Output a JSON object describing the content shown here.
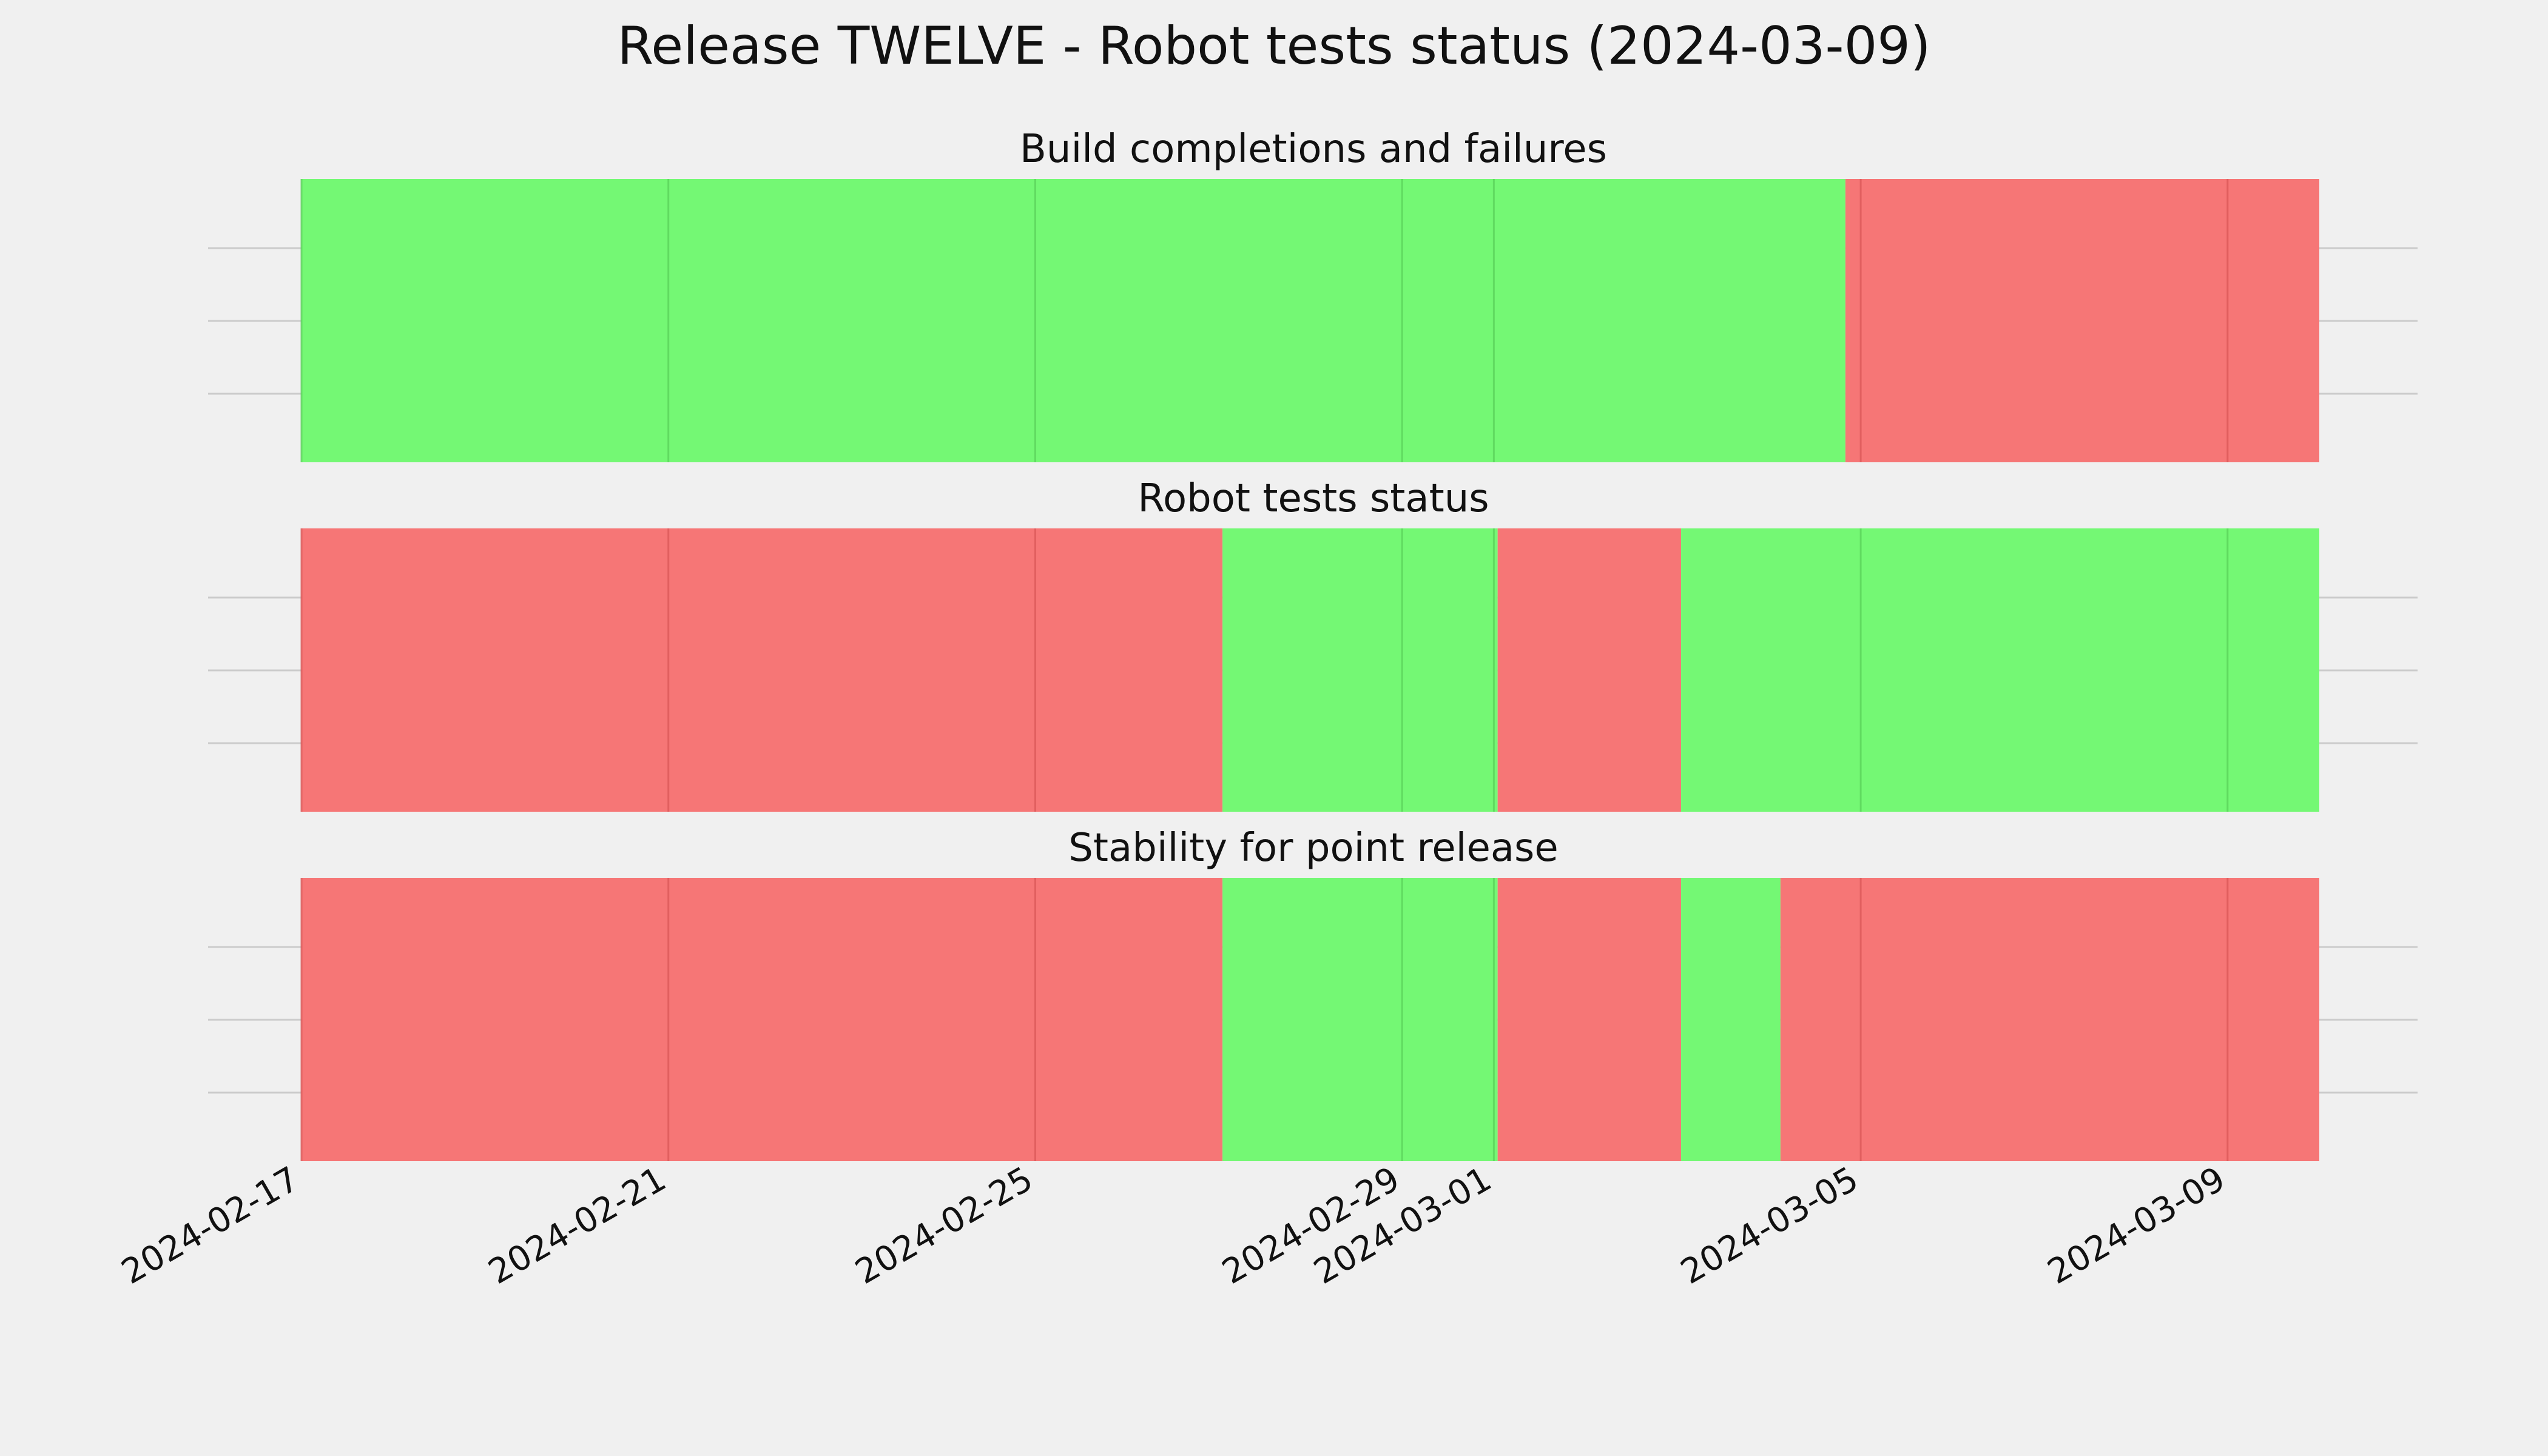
{
  "title": "Release TWELVE - Robot tests status (2024-03-09)",
  "colors": {
    "background": "#f0f0f0",
    "pass": "#74f874",
    "fail": "#f67676",
    "pass_grid": "#5cd45c",
    "fail_grid": "#dc5a5a",
    "grid": "#cbcbcb"
  },
  "chart_data": {
    "type": "timeline",
    "x_axis": {
      "type": "date",
      "range": [
        "2024-02-17",
        "2024-03-10"
      ],
      "ticks": [
        "2024-02-17",
        "2024-02-21",
        "2024-02-25",
        "2024-02-29",
        "2024-03-01",
        "2024-03-05",
        "2024-03-09"
      ]
    },
    "grid": true,
    "panels": [
      {
        "title": "Build completions and failures",
        "segments": [
          {
            "start": "2024-02-17",
            "end": "2024-03-04T20:00",
            "status": "pass"
          },
          {
            "start": "2024-03-04T20:00",
            "end": "2024-03-10",
            "status": "fail"
          }
        ]
      },
      {
        "title": "Robot tests status",
        "segments": [
          {
            "start": "2024-02-17",
            "end": "2024-02-27T01:00",
            "status": "fail"
          },
          {
            "start": "2024-02-27T01:00",
            "end": "2024-03-01T01:00",
            "status": "pass"
          },
          {
            "start": "2024-03-01T01:00",
            "end": "2024-03-03T01:00",
            "status": "fail"
          },
          {
            "start": "2024-03-03T01:00",
            "end": "2024-03-10",
            "status": "pass"
          }
        ]
      },
      {
        "title": "Stability for point release",
        "segments": [
          {
            "start": "2024-02-17",
            "end": "2024-02-27T01:00",
            "status": "fail"
          },
          {
            "start": "2024-02-27T01:00",
            "end": "2024-03-01T01:00",
            "status": "pass"
          },
          {
            "start": "2024-03-01T01:00",
            "end": "2024-03-03T01:00",
            "status": "fail"
          },
          {
            "start": "2024-03-03T01:00",
            "end": "2024-03-04T03:00",
            "status": "pass"
          },
          {
            "start": "2024-03-04T03:00",
            "end": "2024-03-10",
            "status": "fail"
          }
        ]
      }
    ]
  }
}
